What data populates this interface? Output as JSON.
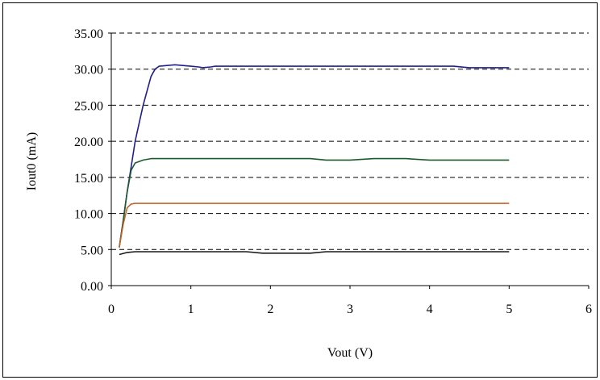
{
  "chart_data": {
    "type": "line",
    "xlabel": "Vout (V)",
    "ylabel": "Iout0 (mA)",
    "xlim": [
      0,
      6
    ],
    "ylim": [
      0,
      35
    ],
    "x_ticks": [
      "0",
      "1",
      "2",
      "3",
      "4",
      "5",
      "6"
    ],
    "y_ticks": [
      "0.00",
      "5.00",
      "10.00",
      "15.00",
      "20.00",
      "25.00",
      "30.00",
      "35.00"
    ],
    "grid": "horizontal dashed",
    "legend": "none",
    "series": [
      {
        "color": "#1f1f8c",
        "points": [
          [
            0.1,
            5.3
          ],
          [
            0.15,
            9.0
          ],
          [
            0.2,
            13.0
          ],
          [
            0.25,
            16.5
          ],
          [
            0.3,
            20.0
          ],
          [
            0.35,
            22.5
          ],
          [
            0.4,
            25.0
          ],
          [
            0.45,
            27.0
          ],
          [
            0.5,
            29.0
          ],
          [
            0.55,
            30.0
          ],
          [
            0.6,
            30.4
          ],
          [
            0.7,
            30.5
          ],
          [
            0.8,
            30.6
          ],
          [
            0.9,
            30.5
          ],
          [
            1.0,
            30.4
          ],
          [
            1.1,
            30.3
          ],
          [
            1.15,
            30.2
          ],
          [
            1.25,
            30.3
          ],
          [
            1.3,
            30.4
          ],
          [
            1.5,
            30.4
          ],
          [
            2.0,
            30.4
          ],
          [
            3.0,
            30.4
          ],
          [
            4.0,
            30.4
          ],
          [
            4.3,
            30.4
          ],
          [
            4.5,
            30.2
          ],
          [
            4.7,
            30.2
          ],
          [
            5.0,
            30.2
          ]
        ]
      },
      {
        "color": "#1e5a2e",
        "points": [
          [
            0.1,
            5.3
          ],
          [
            0.15,
            9.0
          ],
          [
            0.2,
            13.0
          ],
          [
            0.25,
            16.0
          ],
          [
            0.3,
            17.0
          ],
          [
            0.4,
            17.4
          ],
          [
            0.5,
            17.6
          ],
          [
            1.0,
            17.6
          ],
          [
            2.0,
            17.6
          ],
          [
            2.5,
            17.6
          ],
          [
            2.7,
            17.4
          ],
          [
            3.0,
            17.4
          ],
          [
            3.3,
            17.6
          ],
          [
            3.7,
            17.6
          ],
          [
            4.0,
            17.4
          ],
          [
            4.5,
            17.4
          ],
          [
            5.0,
            17.4
          ]
        ]
      },
      {
        "color": "#c0652a",
        "points": [
          [
            0.1,
            5.3
          ],
          [
            0.15,
            8.5
          ],
          [
            0.2,
            10.8
          ],
          [
            0.25,
            11.3
          ],
          [
            0.3,
            11.4
          ],
          [
            0.5,
            11.4
          ],
          [
            1.0,
            11.4
          ],
          [
            2.0,
            11.4
          ],
          [
            3.0,
            11.4
          ],
          [
            4.0,
            11.4
          ],
          [
            5.0,
            11.4
          ]
        ]
      },
      {
        "color": "#1a1a1a",
        "points": [
          [
            0.1,
            4.3
          ],
          [
            0.2,
            4.6
          ],
          [
            0.3,
            4.7
          ],
          [
            1.0,
            4.7
          ],
          [
            1.7,
            4.7
          ],
          [
            1.9,
            4.5
          ],
          [
            2.5,
            4.5
          ],
          [
            2.7,
            4.7
          ],
          [
            3.0,
            4.7
          ],
          [
            4.0,
            4.7
          ],
          [
            5.0,
            4.7
          ]
        ]
      }
    ]
  }
}
